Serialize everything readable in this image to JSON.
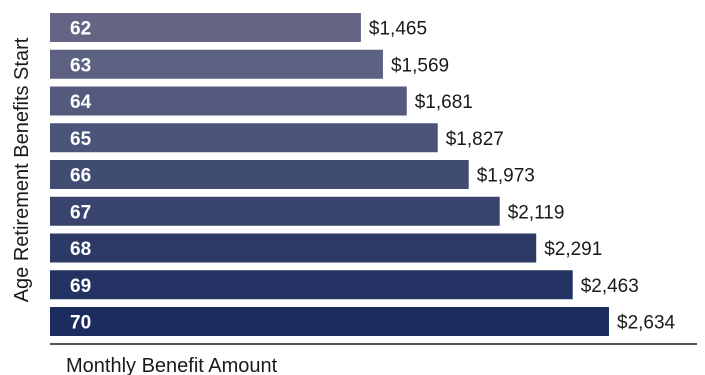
{
  "chart_data": {
    "type": "bar",
    "orientation": "horizontal",
    "categories": [
      "62",
      "63",
      "64",
      "65",
      "66",
      "67",
      "68",
      "69",
      "70"
    ],
    "values": [
      1465,
      1569,
      1681,
      1827,
      1973,
      2119,
      2291,
      2463,
      2634
    ],
    "value_labels": [
      "$1,465",
      "$1,569",
      "$1,681",
      "$1,827",
      "$1,973",
      "$2,119",
      "$2,291",
      "$2,463",
      "$2,634"
    ],
    "title": "",
    "xlabel": "Monthly Benefit Amount",
    "ylabel": "Age Retirement Benefits Start",
    "xlim": [
      0,
      2634
    ],
    "grid": false,
    "colors": [
      "#646584",
      "#5d6283",
      "#535a7d",
      "#4b5479",
      "#414c72",
      "#38446d",
      "#2d3a68",
      "#233263",
      "#1c2c5e"
    ]
  }
}
